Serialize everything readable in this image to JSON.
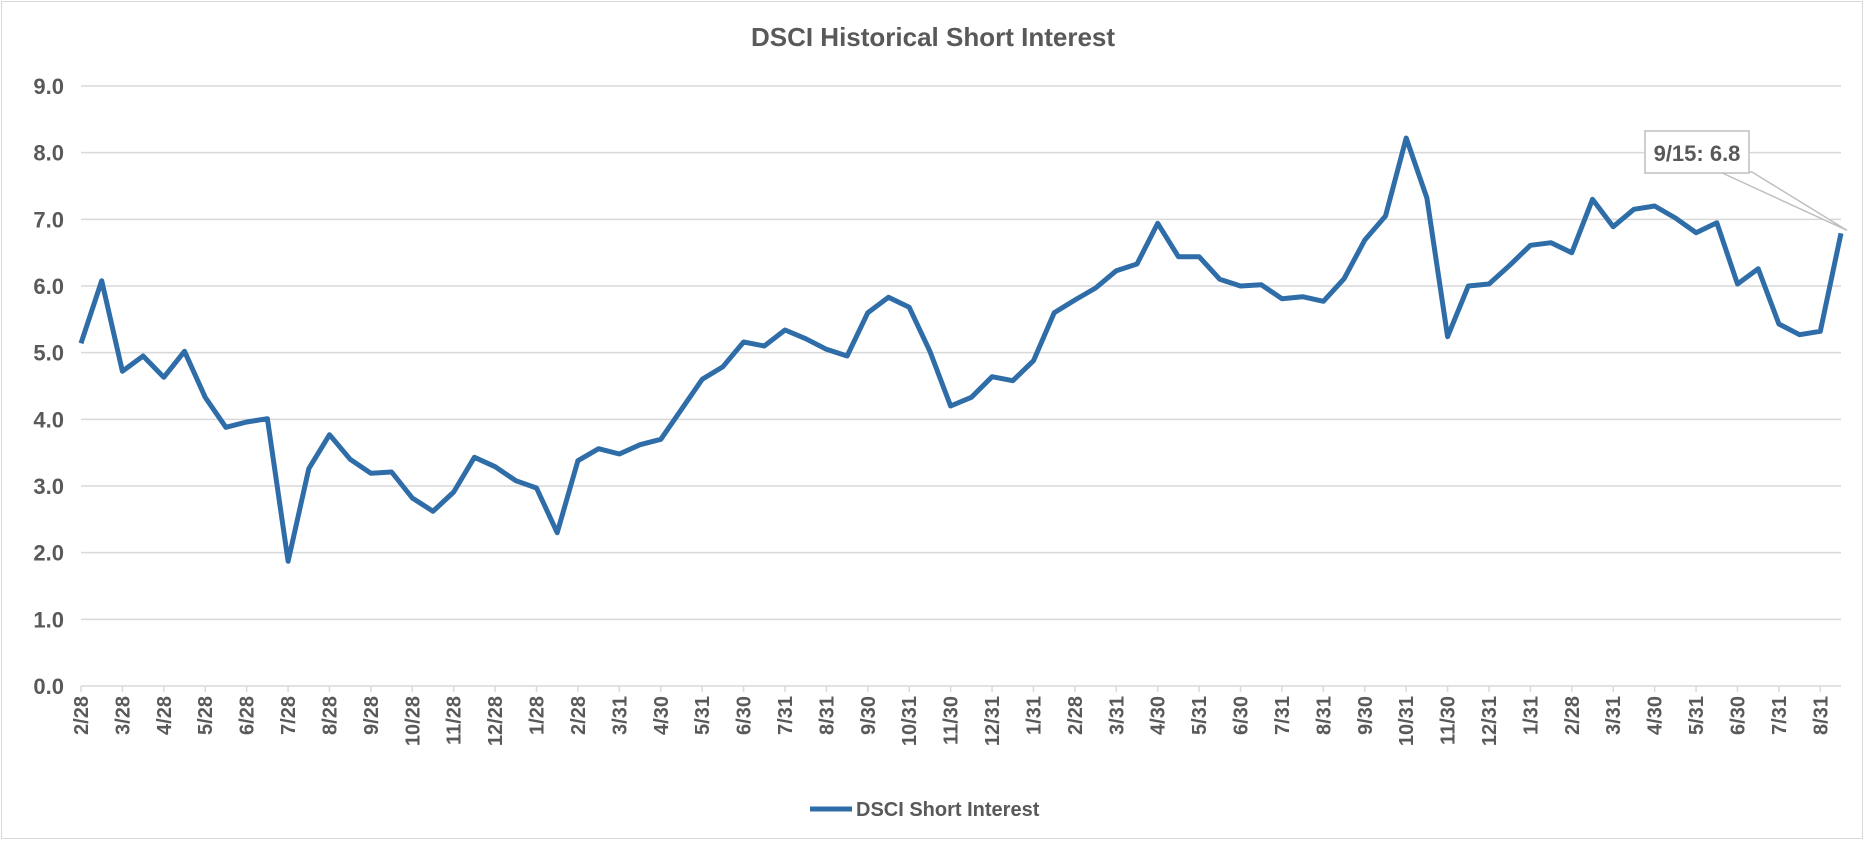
{
  "chart_data": {
    "type": "line",
    "title": "DSCI Historical Short Interest",
    "xlabel": "",
    "ylabel": "",
    "ylim": [
      0,
      9
    ],
    "yticks": [
      "0.0",
      "1.0",
      "2.0",
      "3.0",
      "4.0",
      "5.0",
      "6.0",
      "7.0",
      "8.0",
      "9.0"
    ],
    "grid": true,
    "legend_position": "bottom",
    "tick_labels": [
      "2/28",
      "3/28",
      "4/28",
      "5/28",
      "6/28",
      "7/28",
      "8/28",
      "9/28",
      "10/28",
      "11/28",
      "12/28",
      "1/28",
      "2/28",
      "3/31",
      "4/30",
      "5/31",
      "6/30",
      "7/31",
      "8/31",
      "9/30",
      "10/31",
      "11/30",
      "12/31",
      "1/31",
      "2/28",
      "3/31",
      "4/30",
      "5/31",
      "6/30",
      "7/31",
      "8/31",
      "9/30",
      "10/31",
      "11/30",
      "12/31",
      "1/31",
      "2/28",
      "3/31",
      "4/30",
      "5/31",
      "6/30",
      "7/31",
      "8/31"
    ],
    "series": [
      {
        "name": "DSCI Short Interest",
        "color": "#2E6DA8",
        "values": [
          5.14,
          6.08,
          4.72,
          4.95,
          4.63,
          5.02,
          4.33,
          3.88,
          3.96,
          4.01,
          1.87,
          3.26,
          3.77,
          3.4,
          3.19,
          3.21,
          2.82,
          2.62,
          2.91,
          3.43,
          3.29,
          3.08,
          2.97,
          2.3,
          3.38,
          3.56,
          3.48,
          3.62,
          3.7,
          4.15,
          4.6,
          4.79,
          5.16,
          5.1,
          5.34,
          5.21,
          5.05,
          4.95,
          5.6,
          5.83,
          5.68,
          5.02,
          4.2,
          4.33,
          4.64,
          4.58,
          4.88,
          5.6,
          5.79,
          5.97,
          6.23,
          6.33,
          6.94,
          6.44,
          6.44,
          6.1,
          6.0,
          6.02,
          5.81,
          5.84,
          5.77,
          6.11,
          6.69,
          7.05,
          8.22,
          7.32,
          5.24,
          6.0,
          6.03,
          6.31,
          6.61,
          6.65,
          6.5,
          7.3,
          6.89,
          7.15,
          7.2,
          7.02,
          6.8,
          6.95,
          6.03,
          6.26,
          5.43,
          5.27,
          5.32,
          6.79
        ]
      }
    ],
    "annotations": [
      {
        "text": "9/15: 6.8",
        "point": "last"
      }
    ]
  }
}
